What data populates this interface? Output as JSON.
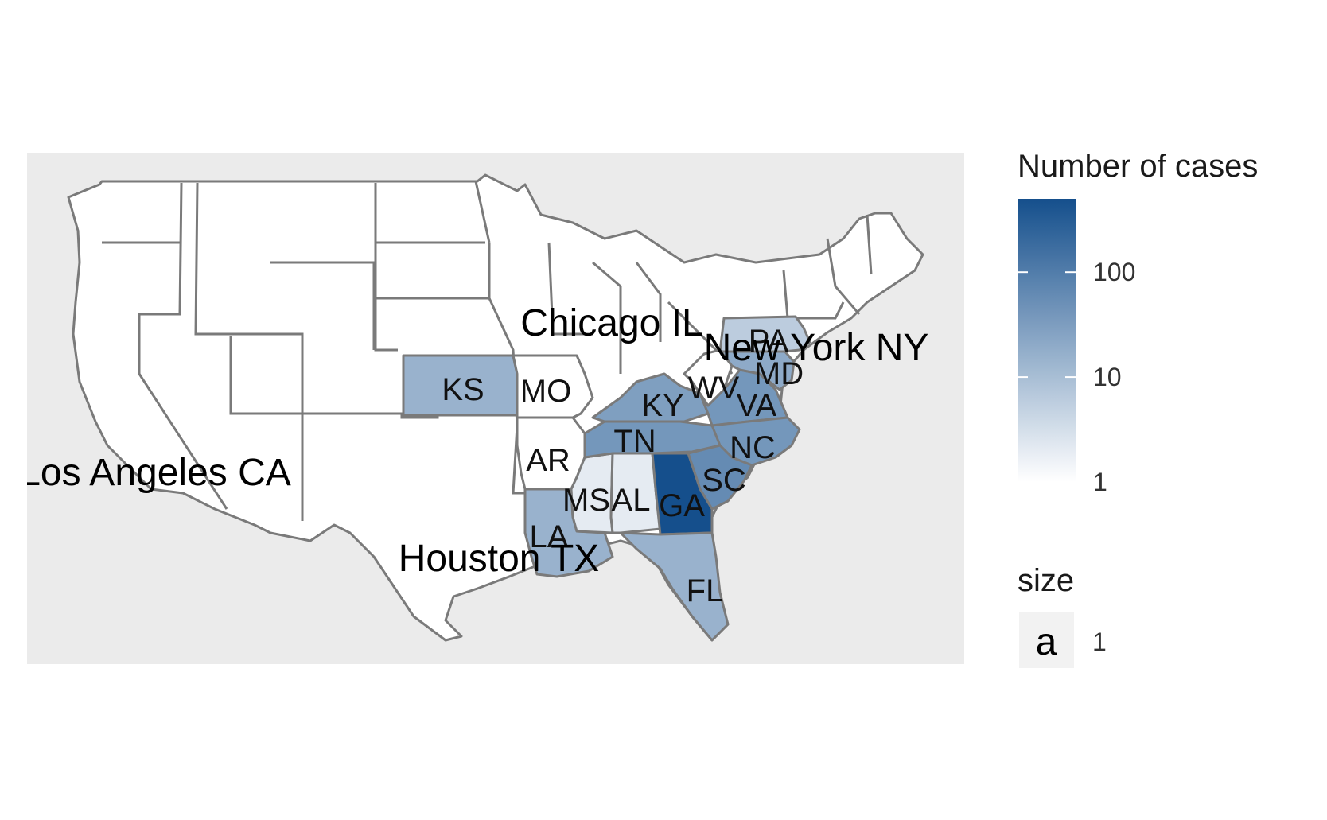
{
  "chart_data": {
    "type": "choropleth-map",
    "panel_background": "#ebebeb",
    "fill_scale": {
      "title": "Number of cases",
      "transform": "log10",
      "low_color": "#ffffff",
      "high_color": "#154f8c",
      "limits": [
        1,
        500
      ],
      "breaks": [
        1,
        10,
        100
      ],
      "break_labels": [
        "1",
        "10",
        "100"
      ]
    },
    "size_legend": {
      "title": "size",
      "key_glyph": "a",
      "value_label": "1"
    },
    "states": [
      {
        "code": "KS",
        "label": "KS",
        "cases": 15
      },
      {
        "code": "MO",
        "label": "MO",
        "cases": 1
      },
      {
        "code": "AR",
        "label": "AR",
        "cases": 1
      },
      {
        "code": "LA",
        "label": "LA",
        "cases": 15
      },
      {
        "code": "MS",
        "label": "MS",
        "cases": 2
      },
      {
        "code": "AL",
        "label": "AL",
        "cases": 2
      },
      {
        "code": "TN",
        "label": "TN",
        "cases": 40
      },
      {
        "code": "KY",
        "label": "KY",
        "cases": 30
      },
      {
        "code": "WV",
        "label": "WV",
        "cases": 1
      },
      {
        "code": "VA",
        "label": "VA",
        "cases": 40
      },
      {
        "code": "MD",
        "label": "MD",
        "cases": 20
      },
      {
        "code": "PA",
        "label": "PA",
        "cases": 6
      },
      {
        "code": "NC",
        "label": "NC",
        "cases": 40
      },
      {
        "code": "SC",
        "label": "SC",
        "cases": 60
      },
      {
        "code": "GA",
        "label": "GA",
        "cases": 500
      },
      {
        "code": "FL",
        "label": "FL",
        "cases": 15
      }
    ],
    "cities": [
      {
        "name": "Chicago IL",
        "size": 1
      },
      {
        "name": "New York NY",
        "size": 1
      },
      {
        "name": "Los Angeles CA",
        "size": 1
      },
      {
        "name": "Houston TX",
        "size": 1
      }
    ]
  }
}
